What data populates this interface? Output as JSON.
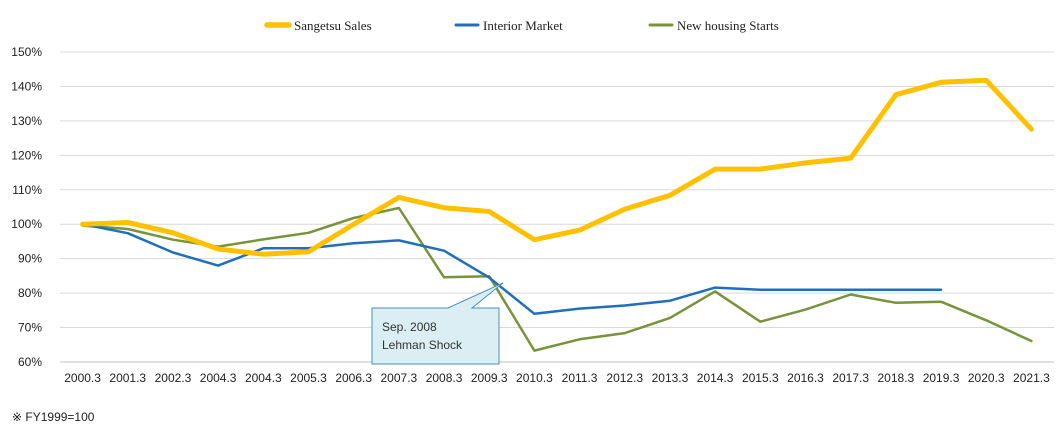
{
  "chart_data": {
    "type": "line",
    "categories": [
      "2000.3",
      "2001.3",
      "2002.3",
      "2004.3",
      "2004.3",
      "2005.3",
      "2006.3",
      "2007.3",
      "2008.3",
      "2009.3",
      "2010.3",
      "2011.3",
      "2012.3",
      "2013.3",
      "2014.3",
      "2015.3",
      "2016.3",
      "2017.3",
      "2018.3",
      "2019.3",
      "2020.3",
      "2021.3"
    ],
    "ylim": [
      60,
      150
    ],
    "y_ticks": [
      "60%",
      "70%",
      "80%",
      "90%",
      "100%",
      "110%",
      "120%",
      "130%",
      "140%",
      "150%"
    ],
    "grid": true,
    "legend_position": "top-center",
    "series": [
      {
        "name": "Sangetsu Sales",
        "color": "#FFC000",
        "width": 5,
        "values": [
          100,
          100.5,
          97.5,
          92.8,
          91.3,
          92.0,
          100.0,
          107.8,
          104.8,
          103.7,
          95.5,
          98.3,
          104.4,
          108.4,
          116.0,
          116.0,
          117.8,
          119.2,
          137.6,
          141.2,
          141.8,
          127.6
        ]
      },
      {
        "name": "Interior Market",
        "color": "#1F6FBF",
        "width": 2.5,
        "values": [
          100,
          97.4,
          91.8,
          88.0,
          93.0,
          93.0,
          94.5,
          95.3,
          92.3,
          84.5,
          74.0,
          75.5,
          76.4,
          77.8,
          81.6,
          81.0,
          81.0,
          81.0,
          81.0,
          81.0,
          null,
          null
        ]
      },
      {
        "name": "New housing Starts",
        "color": "#77933C",
        "width": 2.5,
        "values": [
          99.6,
          98.6,
          95.5,
          93.5,
          95.6,
          97.5,
          101.8,
          104.7,
          84.6,
          84.9,
          63.3,
          66.6,
          68.4,
          72.8,
          80.5,
          71.7,
          75.2,
          79.6,
          77.2,
          77.5,
          72.1,
          66.1
        ]
      }
    ],
    "annotation": {
      "lines": [
        "Sep. 2008",
        "Lehman Shock"
      ],
      "points_to_category": "2009.3"
    }
  },
  "footnote": "※ FY1999=100"
}
